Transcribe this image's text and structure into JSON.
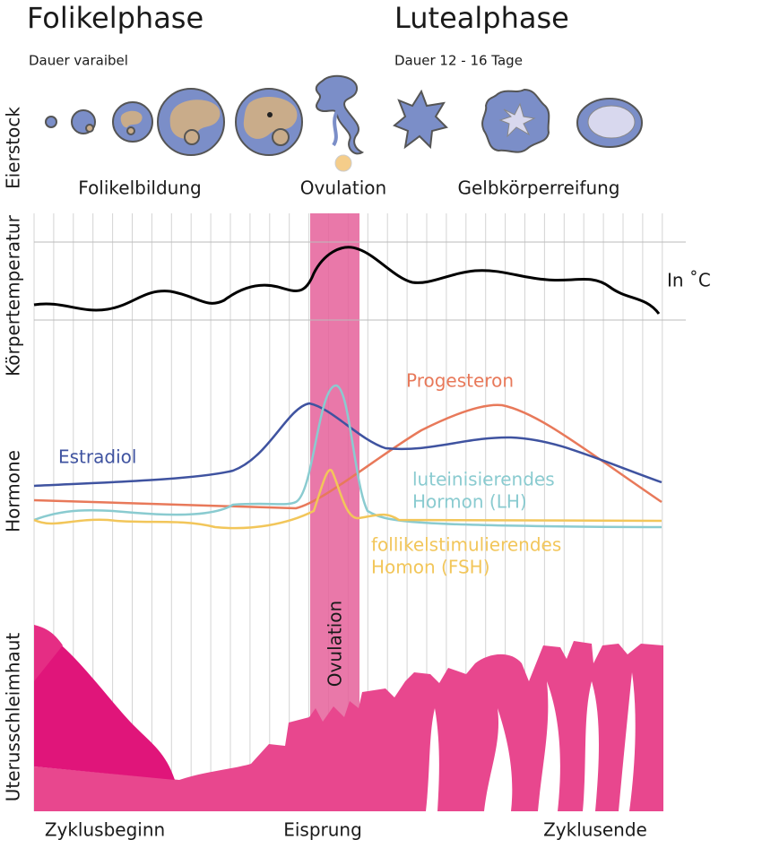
{
  "header": {
    "phases": [
      {
        "title": "Folikelphase",
        "duration": "Dauer varaibel"
      },
      {
        "title": "Lutealphase",
        "duration": "Dauer 12 - 16 Tage"
      }
    ]
  },
  "rows": {
    "ovary": "Eierstock",
    "temperature": "Körpertemperatur",
    "hormones": "Hormone",
    "endometrium": "Uterusschleimhaut"
  },
  "ovary_stages": [
    "Folikelbildung",
    "Ovulation",
    "Gelbkörperreifung"
  ],
  "temperature_unit": "In ˚C",
  "hormone_labels": {
    "progesterone": "Progesteron",
    "estradiol": "Estradiol",
    "lh": [
      "luteinisierendes",
      "Hormon (LH)"
    ],
    "fsh": [
      "follikelstimulierendes",
      "Homon (FSH)"
    ]
  },
  "ovulation_band": "Ovulation",
  "footer": [
    "Zyklusbeginn",
    "Eisprung",
    "Zyklusende"
  ]
}
